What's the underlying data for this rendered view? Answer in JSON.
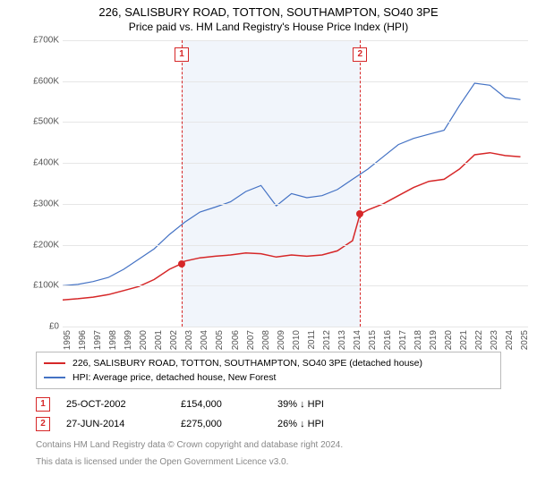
{
  "title": "226, SALISBURY ROAD, TOTTON, SOUTHAMPTON, SO40 3PE",
  "subtitle": "Price paid vs. HM Land Registry's House Price Index (HPI)",
  "chart": {
    "type": "line",
    "xlim": [
      1995,
      2025.5
    ],
    "ylim": [
      0,
      700
    ],
    "yticks": [
      0,
      100,
      200,
      300,
      400,
      500,
      600,
      700
    ],
    "ytick_prefix": "£",
    "ytick_suffix": "K",
    "xticks": [
      1995,
      1996,
      1997,
      1998,
      1999,
      2000,
      2001,
      2002,
      2003,
      2004,
      2005,
      2006,
      2007,
      2008,
      2009,
      2010,
      2011,
      2012,
      2013,
      2014,
      2015,
      2016,
      2017,
      2018,
      2019,
      2020,
      2021,
      2022,
      2023,
      2024,
      2025
    ],
    "grid_color": "#e6e6e6",
    "background_color": "#ffffff",
    "band_color": "#e8eef8",
    "series": [
      {
        "name": "price_paid",
        "color": "#d62728",
        "width": 1.5,
        "points": [
          [
            1995,
            65
          ],
          [
            1996,
            68
          ],
          [
            1997,
            72
          ],
          [
            1998,
            78
          ],
          [
            1999,
            88
          ],
          [
            2000,
            98
          ],
          [
            2001,
            115
          ],
          [
            2002,
            140
          ],
          [
            2002.8,
            154
          ],
          [
            2003,
            160
          ],
          [
            2004,
            168
          ],
          [
            2005,
            172
          ],
          [
            2006,
            175
          ],
          [
            2007,
            180
          ],
          [
            2008,
            178
          ],
          [
            2009,
            170
          ],
          [
            2010,
            175
          ],
          [
            2011,
            172
          ],
          [
            2012,
            175
          ],
          [
            2013,
            185
          ],
          [
            2014,
            210
          ],
          [
            2014.49,
            275
          ],
          [
            2015,
            285
          ],
          [
            2016,
            300
          ],
          [
            2017,
            320
          ],
          [
            2018,
            340
          ],
          [
            2019,
            355
          ],
          [
            2020,
            360
          ],
          [
            2021,
            385
          ],
          [
            2022,
            420
          ],
          [
            2023,
            425
          ],
          [
            2024,
            418
          ],
          [
            2025,
            415
          ]
        ]
      },
      {
        "name": "hpi",
        "color": "#4472c4",
        "width": 1.2,
        "points": [
          [
            1995,
            100
          ],
          [
            1996,
            103
          ],
          [
            1997,
            110
          ],
          [
            1998,
            120
          ],
          [
            1999,
            140
          ],
          [
            2000,
            165
          ],
          [
            2001,
            190
          ],
          [
            2002,
            225
          ],
          [
            2003,
            255
          ],
          [
            2004,
            280
          ],
          [
            2005,
            292
          ],
          [
            2006,
            305
          ],
          [
            2007,
            330
          ],
          [
            2008,
            345
          ],
          [
            2009,
            295
          ],
          [
            2010,
            325
          ],
          [
            2011,
            315
          ],
          [
            2012,
            320
          ],
          [
            2013,
            335
          ],
          [
            2014,
            360
          ],
          [
            2015,
            385
          ],
          [
            2016,
            415
          ],
          [
            2017,
            445
          ],
          [
            2018,
            460
          ],
          [
            2019,
            470
          ],
          [
            2020,
            480
          ],
          [
            2021,
            540
          ],
          [
            2022,
            595
          ],
          [
            2023,
            590
          ],
          [
            2024,
            560
          ],
          [
            2025,
            555
          ]
        ]
      }
    ],
    "markers": [
      {
        "n": "1",
        "x": 2002.8,
        "y": 154,
        "color": "#d62728"
      },
      {
        "n": "2",
        "x": 2014.49,
        "y": 275,
        "color": "#d62728"
      }
    ]
  },
  "legend": [
    {
      "color": "#d62728",
      "label": "226, SALISBURY ROAD, TOTTON, SOUTHAMPTON, SO40 3PE (detached house)"
    },
    {
      "color": "#4472c4",
      "label": "HPI: Average price, detached house, New Forest"
    }
  ],
  "sales": [
    {
      "n": "1",
      "color": "#d62728",
      "date": "25-OCT-2002",
      "price": "£154,000",
      "delta": "39% ↓ HPI"
    },
    {
      "n": "2",
      "color": "#d62728",
      "date": "27-JUN-2014",
      "price": "£275,000",
      "delta": "26% ↓ HPI"
    }
  ],
  "footer1": "Contains HM Land Registry data © Crown copyright and database right 2024.",
  "footer2": "This data is licensed under the Open Government Licence v3.0."
}
